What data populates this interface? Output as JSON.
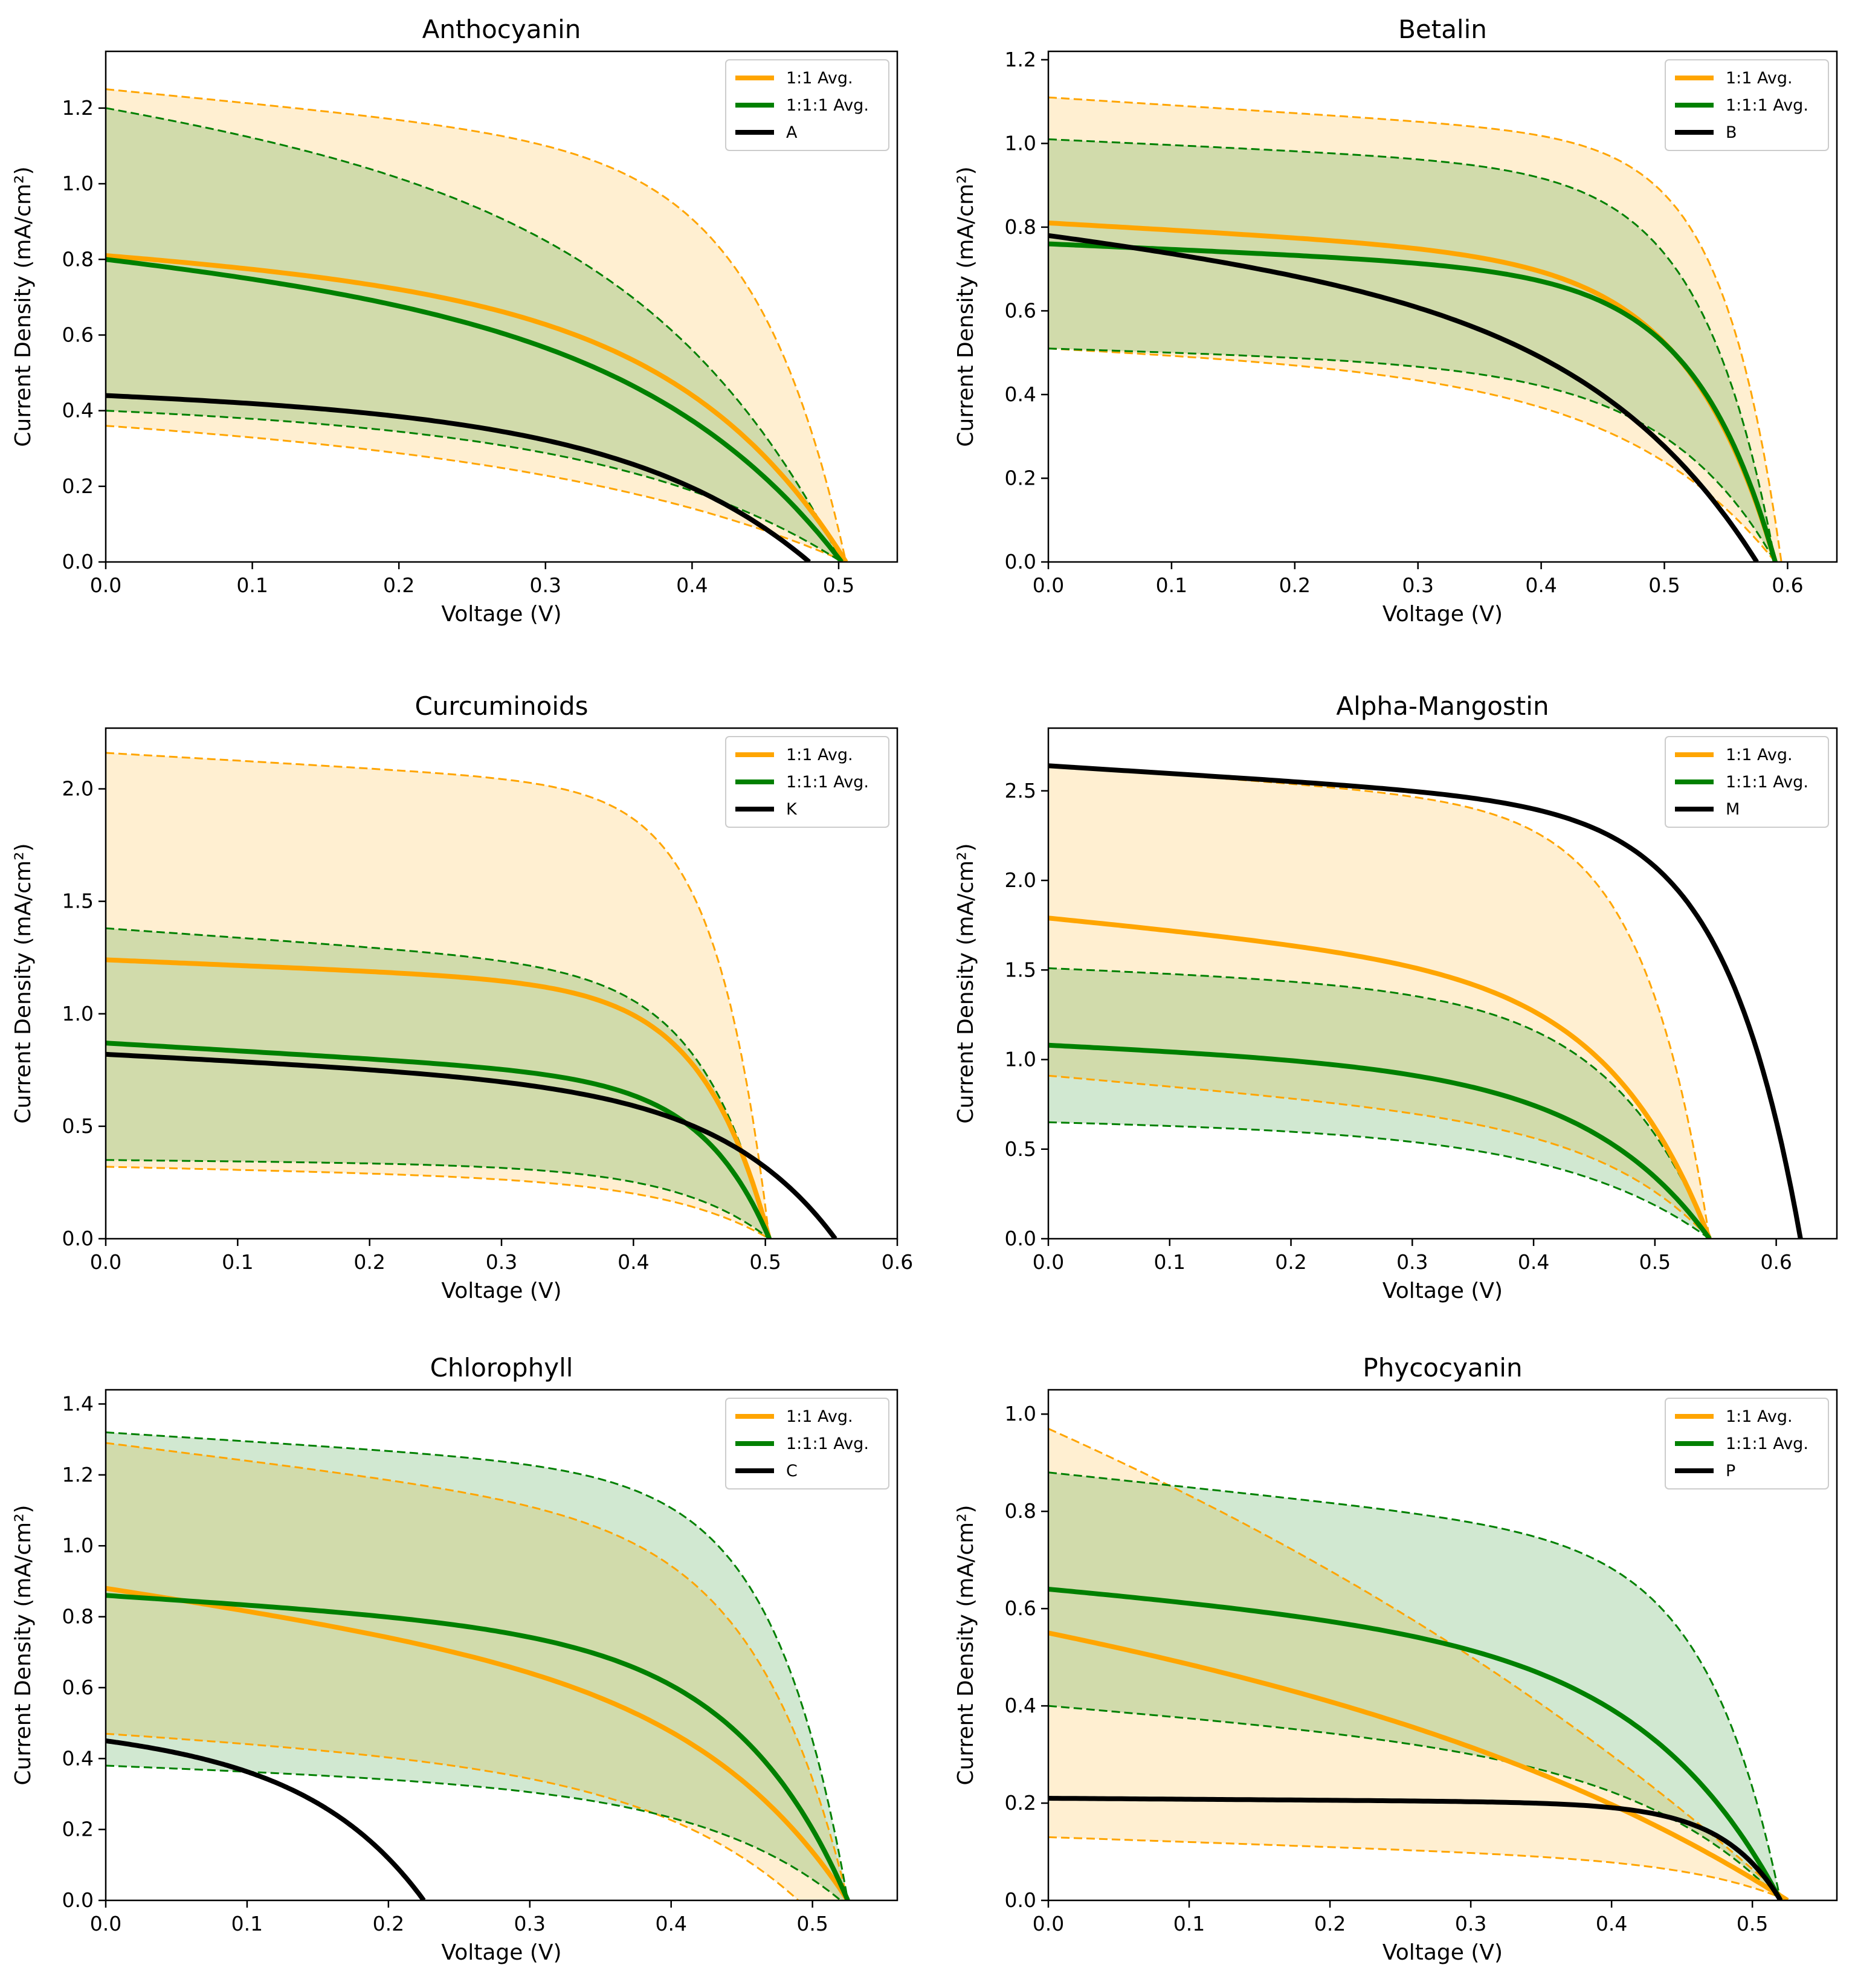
{
  "chart_data": [
    {
      "type": "line",
      "title": "Anthocyanin",
      "xlabel": "Voltage (V)",
      "ylabel": "Current Density (mA/cm²)",
      "xlim": [
        0,
        0.54
      ],
      "ylim": [
        0,
        1.35
      ],
      "xticks": [
        0.0,
        0.1,
        0.2,
        0.3,
        0.4,
        0.5
      ],
      "yticks": [
        0.0,
        0.2,
        0.4,
        0.6,
        0.8,
        1.0,
        1.2
      ],
      "xticklabels": [
        "0.0",
        "0.1",
        "0.2",
        "0.3",
        "0.4",
        "0.5"
      ],
      "yticklabels": [
        "0.0",
        "0.2",
        "0.4",
        "0.6",
        "0.8",
        "1.0",
        "1.2"
      ],
      "legend_position": "top-right",
      "series": [
        {
          "name": "1:1 Avg.",
          "color": "#FFA500",
          "Jsc": 0.81,
          "Voc": 0.505,
          "shape": 0.22,
          "slope": 0.15,
          "band_upper": {
            "Jsc": 1.25,
            "Voc": 0.505,
            "shape": 0.12,
            "slope": 0.15
          },
          "band_lower": {
            "Jsc": 0.36,
            "Voc": 0.505,
            "shape": 0.36,
            "slope": 0.2
          }
        },
        {
          "name": "1:1:1 Avg.",
          "color": "#008000",
          "Jsc": 0.8,
          "Voc": 0.502,
          "shape": 0.25,
          "slope": 0.22,
          "band_upper": {
            "Jsc": 1.2,
            "Voc": 0.502,
            "shape": 0.25,
            "slope": 0.22
          },
          "band_lower": {
            "Jsc": 0.4,
            "Voc": 0.502,
            "shape": 0.3,
            "slope": 0.1
          }
        },
        {
          "name": "A",
          "color": "#000000",
          "Jsc": 0.44,
          "Voc": 0.48,
          "shape": 0.25,
          "slope": 0.12
        }
      ]
    },
    {
      "type": "line",
      "title": "Betalin",
      "xlabel": "Voltage (V)",
      "ylabel": "Current Density (mA/cm²)",
      "xlim": [
        0,
        0.64
      ],
      "ylim": [
        0,
        1.22
      ],
      "xticks": [
        0.0,
        0.1,
        0.2,
        0.3,
        0.4,
        0.5,
        0.6
      ],
      "yticks": [
        0.0,
        0.2,
        0.4,
        0.6,
        0.8,
        1.0,
        1.2
      ],
      "xticklabels": [
        "0.0",
        "0.1",
        "0.2",
        "0.3",
        "0.4",
        "0.5",
        "0.6"
      ],
      "yticklabels": [
        "0.0",
        "0.2",
        "0.4",
        "0.6",
        "0.8",
        "1.0",
        "1.2"
      ],
      "legend_position": "top-right",
      "series": [
        {
          "name": "1:1 Avg.",
          "color": "#FFA500",
          "Jsc": 0.81,
          "Voc": 0.59,
          "shape": 0.12,
          "slope": 0.12,
          "band_upper": {
            "Jsc": 1.11,
            "Voc": 0.595,
            "shape": 0.08,
            "slope": 0.1
          },
          "band_lower": {
            "Jsc": 0.51,
            "Voc": 0.59,
            "shape": 0.2,
            "slope": 0.15
          }
        },
        {
          "name": "1:1:1 Avg.",
          "color": "#008000",
          "Jsc": 0.76,
          "Voc": 0.59,
          "shape": 0.11,
          "slope": 0.1,
          "band_upper": {
            "Jsc": 1.01,
            "Voc": 0.59,
            "shape": 0.1,
            "slope": 0.08
          },
          "band_lower": {
            "Jsc": 0.51,
            "Voc": 0.59,
            "shape": 0.15,
            "slope": 0.1
          }
        },
        {
          "name": "B",
          "color": "#000000",
          "Jsc": 0.78,
          "Voc": 0.575,
          "shape": 0.22,
          "slope": 0.25
        }
      ]
    },
    {
      "type": "line",
      "title": "Curcuminoids",
      "xlabel": "Voltage (V)",
      "ylabel": "Current Density (mA/cm²)",
      "xlim": [
        0,
        0.6
      ],
      "ylim": [
        0,
        2.27
      ],
      "xticks": [
        0.0,
        0.1,
        0.2,
        0.3,
        0.4,
        0.5,
        0.6
      ],
      "yticks": [
        0.0,
        0.5,
        1.0,
        1.5,
        2.0
      ],
      "xticklabels": [
        "0.0",
        "0.1",
        "0.2",
        "0.3",
        "0.4",
        "0.5",
        "0.6"
      ],
      "yticklabels": [
        "0.0",
        "0.5",
        "1.0",
        "1.5",
        "2.0"
      ],
      "legend_position": "top-right",
      "series": [
        {
          "name": "1:1 Avg.",
          "color": "#FFA500",
          "Jsc": 1.24,
          "Voc": 0.503,
          "shape": 0.1,
          "slope": 0.1,
          "band_upper": {
            "Jsc": 2.16,
            "Voc": 0.503,
            "shape": 0.08,
            "slope": 0.08
          },
          "band_lower": {
            "Jsc": 0.32,
            "Voc": 0.503,
            "shape": 0.15,
            "slope": 0.2
          }
        },
        {
          "name": "1:1:1 Avg.",
          "color": "#008000",
          "Jsc": 0.87,
          "Voc": 0.503,
          "shape": 0.1,
          "slope": 0.2,
          "band_upper": {
            "Jsc": 1.38,
            "Voc": 0.503,
            "shape": 0.1,
            "slope": 0.15
          },
          "band_lower": {
            "Jsc": 0.35,
            "Voc": 0.503,
            "shape": 0.14,
            "slope": 0.08
          }
        },
        {
          "name": "K",
          "color": "#000000",
          "Jsc": 0.82,
          "Voc": 0.553,
          "shape": 0.15,
          "slope": 0.2
        }
      ]
    },
    {
      "type": "line",
      "title": "Alpha-Mangostin",
      "xlabel": "Voltage (V)",
      "ylabel": "Current Density (mA/cm²)",
      "xlim": [
        0,
        0.65
      ],
      "ylim": [
        0,
        2.85
      ],
      "xticks": [
        0.0,
        0.1,
        0.2,
        0.3,
        0.4,
        0.5,
        0.6
      ],
      "yticks": [
        0.0,
        0.5,
        1.0,
        1.5,
        2.0,
        2.5
      ],
      "xticklabels": [
        "0.0",
        "0.1",
        "0.2",
        "0.3",
        "0.4",
        "0.5",
        "0.6"
      ],
      "yticklabels": [
        "0.0",
        "0.5",
        "1.0",
        "1.5",
        "2.0",
        "2.5"
      ],
      "legend_position": "top-right",
      "series": [
        {
          "name": "1:1 Avg.",
          "color": "#FFA500",
          "Jsc": 1.79,
          "Voc": 0.545,
          "shape": 0.15,
          "slope": 0.2,
          "band_upper": {
            "Jsc": 2.64,
            "Voc": 0.545,
            "shape": 0.1,
            "slope": 0.1
          },
          "band_lower": {
            "Jsc": 0.91,
            "Voc": 0.545,
            "shape": 0.15,
            "slope": 0.35
          }
        },
        {
          "name": "1:1:1 Avg.",
          "color": "#008000",
          "Jsc": 1.08,
          "Voc": 0.545,
          "shape": 0.18,
          "slope": 0.15,
          "band_upper": {
            "Jsc": 1.51,
            "Voc": 0.545,
            "shape": 0.15,
            "slope": 0.1
          },
          "band_lower": {
            "Jsc": 0.65,
            "Voc": 0.545,
            "shape": 0.22,
            "slope": 0.1
          }
        },
        {
          "name": "M",
          "color": "#000000",
          "Jsc": 2.64,
          "Voc": 0.62,
          "shape": 0.1,
          "slope": 0.1
        }
      ]
    },
    {
      "type": "line",
      "title": "Chlorophyll",
      "xlabel": "Voltage (V)",
      "ylabel": "Current Density (mA/cm²)",
      "xlim": [
        0,
        0.56
      ],
      "ylim": [
        0,
        1.44
      ],
      "xticks": [
        0.0,
        0.1,
        0.2,
        0.3,
        0.4,
        0.5
      ],
      "yticks": [
        0.0,
        0.2,
        0.4,
        0.6,
        0.8,
        1.0,
        1.2,
        1.4
      ],
      "xticklabels": [
        "0.0",
        "0.1",
        "0.2",
        "0.3",
        "0.4",
        "0.5"
      ],
      "yticklabels": [
        "0.0",
        "0.2",
        "0.4",
        "0.6",
        "0.8",
        "1.0",
        "1.2",
        "1.4"
      ],
      "legend_position": "top-right",
      "series": [
        {
          "name": "1:1 Avg.",
          "color": "#FFA500",
          "Jsc": 0.88,
          "Voc": 0.525,
          "shape": 0.18,
          "slope": 0.35,
          "band_upper": {
            "Jsc": 1.29,
            "Voc": 0.525,
            "shape": 0.12,
            "slope": 0.2
          },
          "band_lower": {
            "Jsc": 0.47,
            "Voc": 0.49,
            "shape": 0.2,
            "slope": 0.25
          }
        },
        {
          "name": "1:1:1 Avg.",
          "color": "#008000",
          "Jsc": 0.86,
          "Voc": 0.525,
          "shape": 0.15,
          "slope": 0.15,
          "band_upper": {
            "Jsc": 1.32,
            "Voc": 0.525,
            "shape": 0.1,
            "slope": 0.1
          },
          "band_lower": {
            "Jsc": 0.38,
            "Voc": 0.52,
            "shape": 0.18,
            "slope": 0.2
          }
        },
        {
          "name": "C",
          "color": "#000000",
          "Jsc": 0.45,
          "Voc": 0.225,
          "shape": 0.35,
          "slope": 0.1
        }
      ]
    },
    {
      "type": "line",
      "title": "Phycocyanin",
      "xlabel": "Voltage (V)",
      "ylabel": "Current Density (mA/cm²)",
      "xlim": [
        0,
        0.56
      ],
      "ylim": [
        0,
        1.05
      ],
      "xticks": [
        0.0,
        0.1,
        0.2,
        0.3,
        0.4,
        0.5
      ],
      "yticks": [
        0.0,
        0.2,
        0.4,
        0.6,
        0.8,
        1.0
      ],
      "xticklabels": [
        "0.0",
        "0.1",
        "0.2",
        "0.3",
        "0.4",
        "0.5"
      ],
      "yticklabels": [
        "0.0",
        "0.2",
        "0.4",
        "0.6",
        "0.8",
        "1.0"
      ],
      "legend_position": "top-right",
      "series": [
        {
          "name": "1:1 Avg.",
          "color": "#FFA500",
          "Jsc": 0.55,
          "Voc": 0.525,
          "shape": 0.4,
          "slope": 0.35,
          "band_upper": {
            "Jsc": 0.97,
            "Voc": 0.525,
            "shape": 0.55,
            "slope": 0.35
          },
          "band_lower": {
            "Jsc": 0.13,
            "Voc": 0.525,
            "shape": 0.12,
            "slope": 0.4
          }
        },
        {
          "name": "1:1:1 Avg.",
          "color": "#008000",
          "Jsc": 0.64,
          "Voc": 0.52,
          "shape": 0.18,
          "slope": 0.2,
          "band_upper": {
            "Jsc": 0.88,
            "Voc": 0.52,
            "shape": 0.1,
            "slope": 0.18
          },
          "band_lower": {
            "Jsc": 0.4,
            "Voc": 0.52,
            "shape": 0.18,
            "slope": 0.3
          }
        },
        {
          "name": "P",
          "color": "#000000",
          "Jsc": 0.21,
          "Voc": 0.52,
          "shape": 0.08,
          "slope": 0.05
        }
      ]
    }
  ]
}
